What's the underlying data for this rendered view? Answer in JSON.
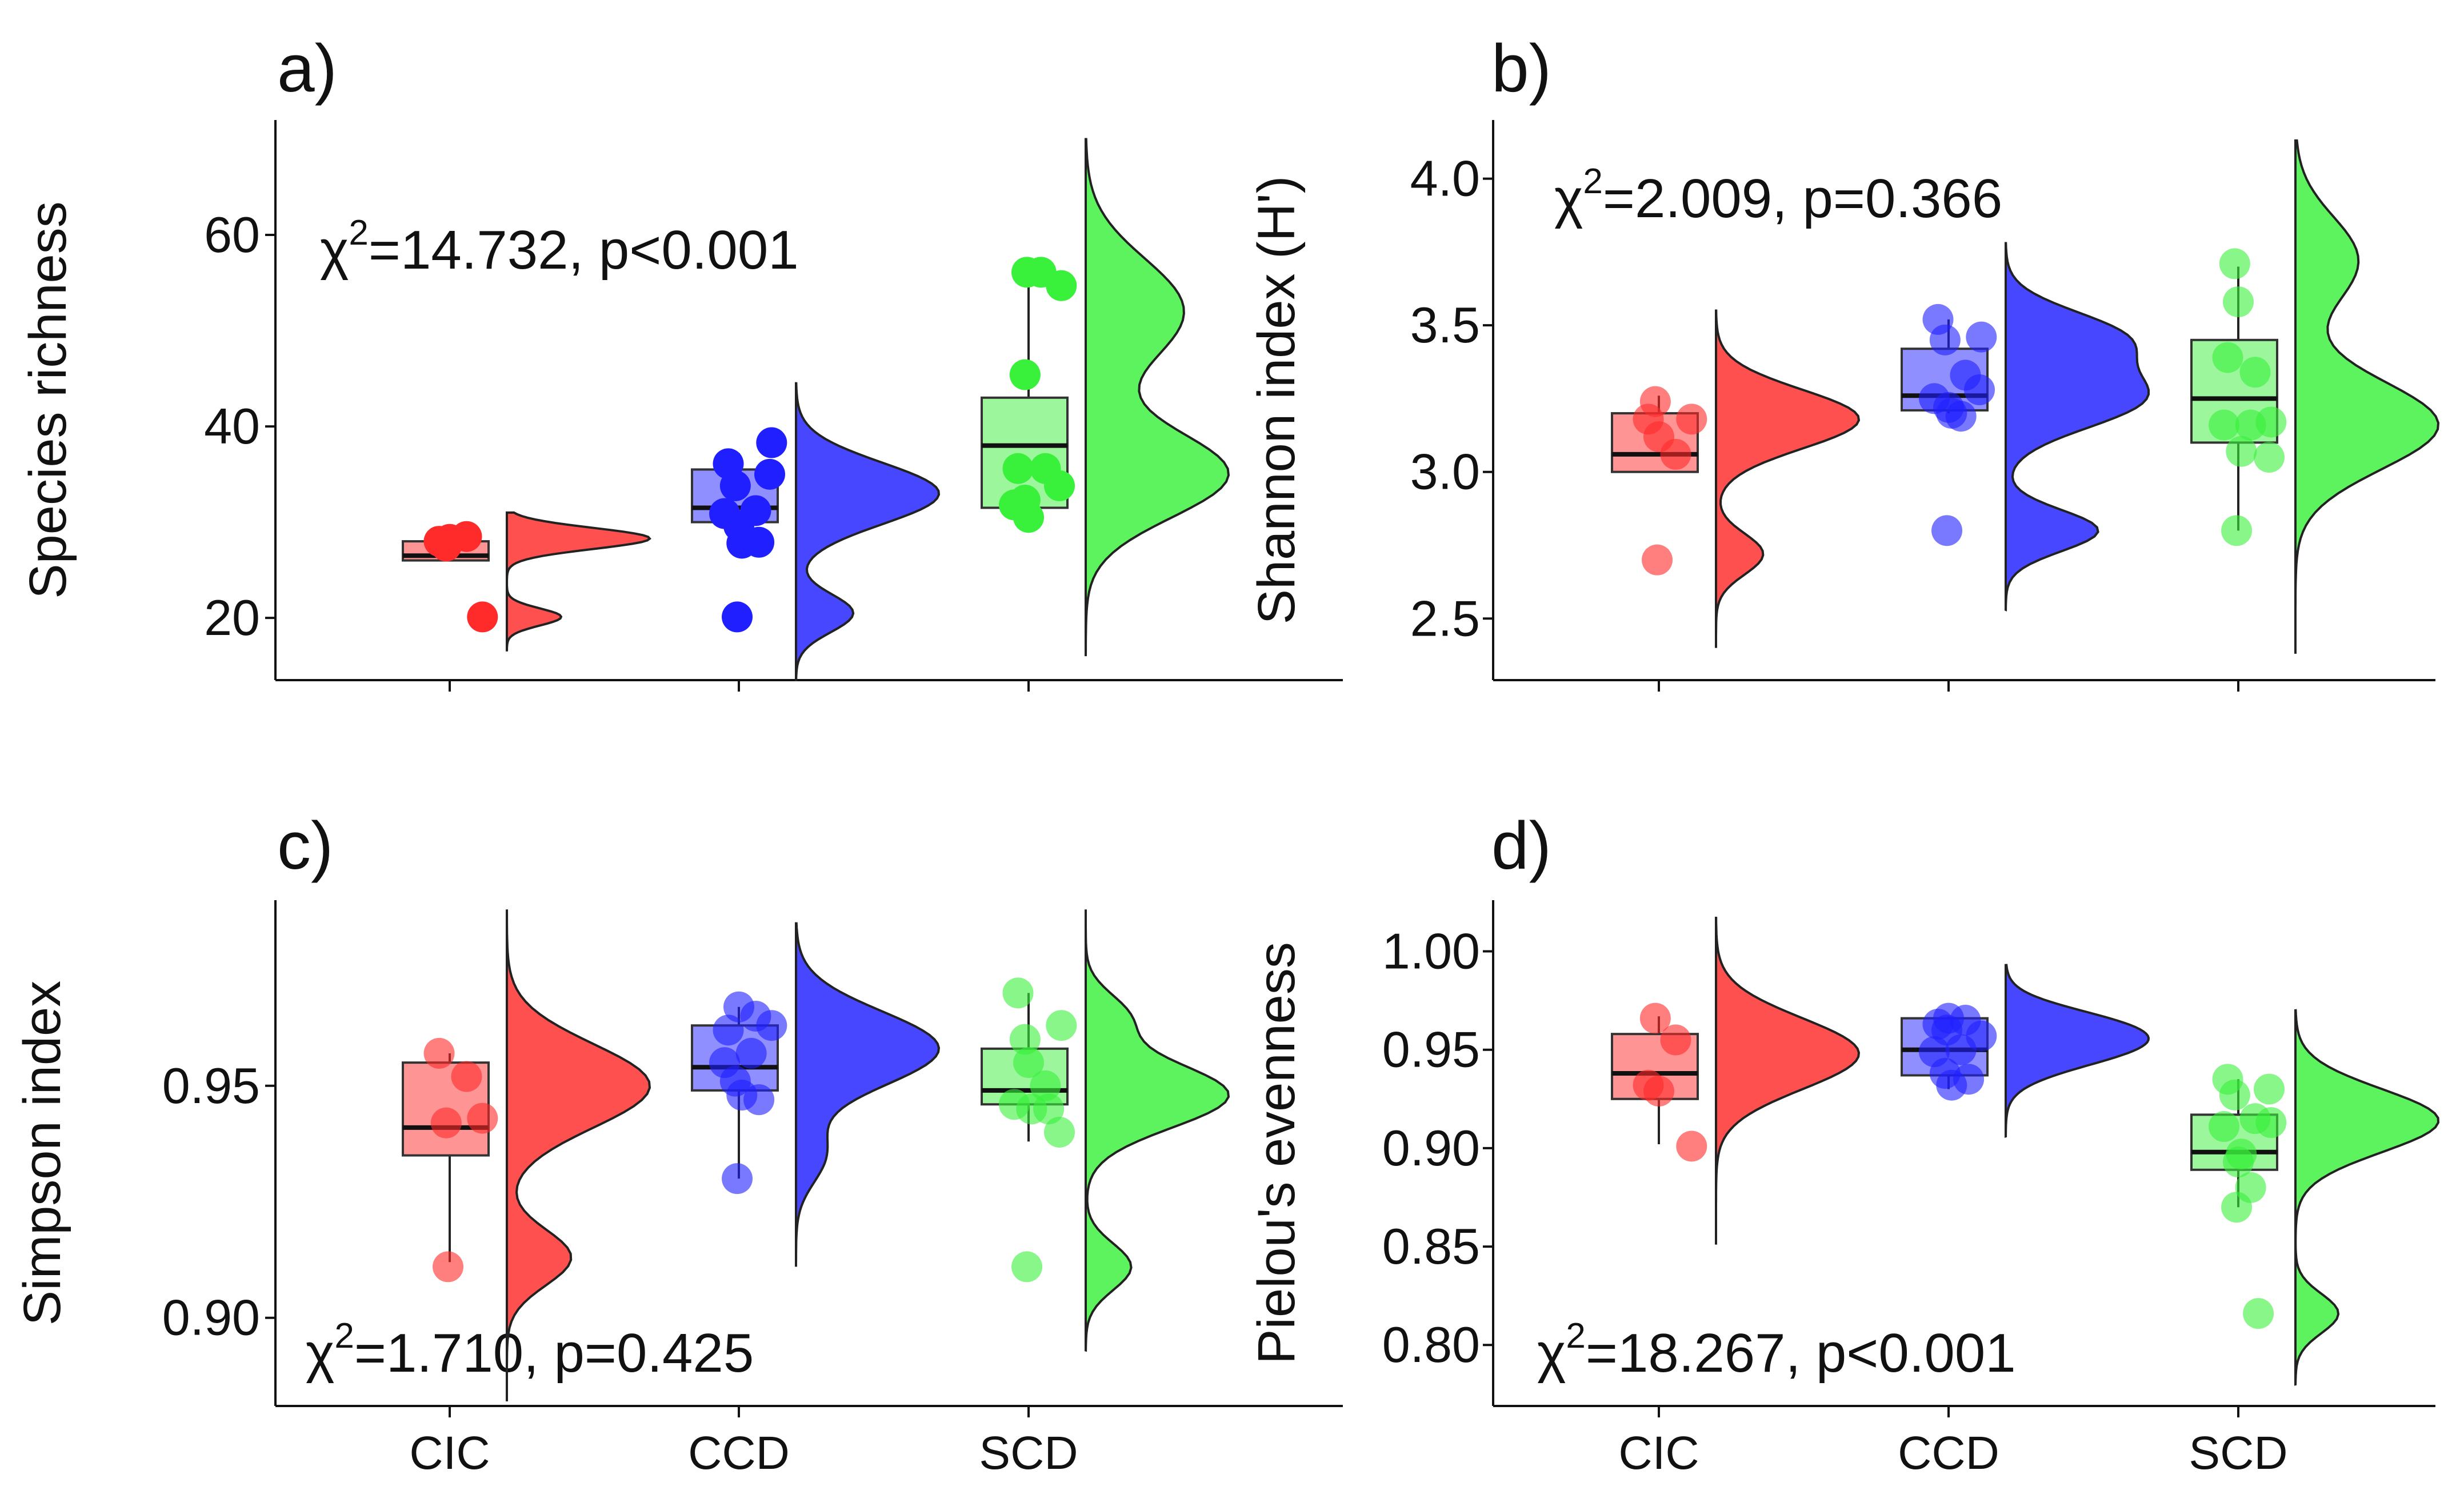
{
  "colors": {
    "CIC": "#ff2a2a",
    "CCD": "#1f1fff",
    "SCD": "#39f03a"
  },
  "chart_data": [
    {
      "type": "raincloud",
      "panel_label": "a)",
      "title": "",
      "xlabel": "",
      "ylabel": "Species richness",
      "categories": [
        "CIC",
        "CCD",
        "SCD"
      ],
      "show_x_tick_labels": false,
      "ylim": [
        13.5,
        72
      ],
      "yticks": [
        20,
        40,
        60
      ],
      "ytick_labels": [
        "20",
        "40",
        "60"
      ],
      "stat": {
        "prefix": "χ",
        "sup": "2",
        "text": "=14.732, p<0.001"
      },
      "point_opacity": 1.0,
      "groups": [
        {
          "name": "CIC",
          "points": [
            [
              26.8,
              28.5
            ],
            [
              -16.8,
              28.0
            ],
            [
              0,
              28.2
            ],
            [
              -5.6,
              27.5
            ],
            [
              52.1,
              20.1
            ]
          ],
          "box": {
            "q1": 26.0,
            "median": 26.5,
            "q3": 28.0,
            "whisker_low": 26.0,
            "whisker_high": 28.0
          },
          "density": {
            "y_min": 16.5,
            "y_max": 31.0,
            "peaks": [
              [
                28.3,
                1.0,
                1.1
              ],
              [
                20.1,
                0.38,
                0.9
              ]
            ]
          }
        },
        {
          "name": "CCD",
          "points": [
            [
              -16.8,
              36.1
            ],
            [
              -5.6,
              33.8
            ],
            [
              52.1,
              38.3
            ],
            [
              49.1,
              35.0
            ],
            [
              -22.7,
              30.9
            ],
            [
              26.8,
              31.2
            ],
            [
              0,
              29.6
            ],
            [
              4.8,
              27.8
            ],
            [
              31.9,
              27.9
            ],
            [
              -2.7,
              20.1
            ]
          ],
          "box": {
            "q1": 30.0,
            "median": 31.5,
            "q3": 35.5,
            "whisker_low": 27.5,
            "whisker_high": 37.2
          },
          "density": {
            "y_min": 13.5,
            "y_max": 44.5,
            "peaks": [
              [
                33.0,
                0.75,
                3.2
              ],
              [
                20.5,
                0.3,
                2.0
              ]
            ]
          }
        },
        {
          "name": "SCD",
          "points": [
            [
              19.7,
              56.1
            ],
            [
              -2.7,
              56.1
            ],
            [
              -5.6,
              45.4
            ],
            [
              52.1,
              54.7
            ],
            [
              -16.8,
              35.6
            ],
            [
              26.8,
              35.6
            ],
            [
              -22.7,
              31.8
            ],
            [
              -5.6,
              32.3
            ],
            [
              49.1,
              33.8
            ],
            [
              0,
              30.5
            ]
          ],
          "box": {
            "q1": 31.5,
            "median": 38.0,
            "q3": 43.0,
            "whisker_low": 30.5,
            "whisker_high": 56.5
          },
          "density": {
            "y_min": 16.0,
            "y_max": 70.0,
            "peaks": [
              [
                35.0,
                0.55,
                4.5
              ],
              [
                52.0,
                0.38,
                5.5
              ]
            ]
          }
        }
      ]
    },
    {
      "type": "raincloud",
      "panel_label": "b)",
      "title": "",
      "xlabel": "",
      "ylabel": "Shannon index (H')",
      "categories": [
        "CIC",
        "CCD",
        "SCD"
      ],
      "show_x_tick_labels": false,
      "ylim": [
        2.29,
        4.2
      ],
      "yticks": [
        2.5,
        3.0,
        3.5,
        4.0
      ],
      "ytick_labels": [
        "2.5",
        "3.0",
        "3.5",
        "4.0"
      ],
      "stat": {
        "prefix": "χ",
        "sup": "2",
        "text": "=2.009, p=0.366"
      },
      "point_opacity": 0.6,
      "groups": [
        {
          "name": "CIC",
          "points": [
            [
              -5.6,
              3.24
            ],
            [
              -16.8,
              3.18
            ],
            [
              0,
              3.12
            ],
            [
              52.1,
              3.18
            ],
            [
              26.8,
              3.06
            ],
            [
              -2.7,
              2.7
            ]
          ],
          "box": {
            "q1": 3.0,
            "median": 3.06,
            "q3": 3.2,
            "whisker_low": 3.0,
            "whisker_high": 3.26
          },
          "density": {
            "y_min": 2.4,
            "y_max": 3.55,
            "peaks": [
              [
                3.18,
                1.0,
                0.1
              ],
              [
                2.72,
                0.33,
                0.07
              ]
            ]
          }
        },
        {
          "name": "CCD",
          "points": [
            [
              -16.8,
              3.52
            ],
            [
              -5.6,
              3.45
            ],
            [
              52.1,
              3.46
            ],
            [
              49.1,
              3.28
            ],
            [
              26.8,
              3.33
            ],
            [
              -22.7,
              3.25
            ],
            [
              0,
              3.22
            ],
            [
              19.7,
              3.19
            ],
            [
              4.8,
              3.2
            ],
            [
              -2.7,
              2.8
            ]
          ],
          "box": {
            "q1": 3.21,
            "median": 3.26,
            "q3": 3.42,
            "whisker_low": 3.2,
            "whisker_high": 3.52
          },
          "density": {
            "y_min": 2.53,
            "y_max": 3.78,
            "peaks": [
              [
                3.25,
                0.55,
                0.1
              ],
              [
                3.46,
                0.45,
                0.09
              ],
              [
                2.8,
                0.38,
                0.07
              ]
            ]
          }
        },
        {
          "name": "SCD",
          "points": [
            [
              -5.6,
              3.71
            ],
            [
              0,
              3.58
            ],
            [
              -16.8,
              3.39
            ],
            [
              26.8,
              3.34
            ],
            [
              52.1,
              3.17
            ],
            [
              -22.7,
              3.16
            ],
            [
              19.7,
              3.16
            ],
            [
              4.8,
              3.07
            ],
            [
              49.1,
              3.05
            ],
            [
              -2.7,
              2.8
            ]
          ],
          "box": {
            "q1": 3.1,
            "median": 3.25,
            "q3": 3.45,
            "whisker_low": 2.8,
            "whisker_high": 3.7
          },
          "density": {
            "y_min": 2.38,
            "y_max": 4.13,
            "peaks": [
              [
                3.16,
                0.5,
                0.15
              ],
              [
                3.72,
                0.22,
                0.15
              ]
            ]
          }
        }
      ]
    },
    {
      "type": "raincloud",
      "panel_label": "c)",
      "title": "",
      "xlabel": "",
      "ylabel": "Simpson index",
      "categories": [
        "CIC",
        "CCD",
        "SCD"
      ],
      "show_x_tick_labels": true,
      "ylim": [
        0.881,
        0.99
      ],
      "yticks": [
        0.9,
        0.95
      ],
      "ytick_labels": [
        "0.90",
        "0.95"
      ],
      "stat": {
        "prefix": "χ",
        "sup": "2",
        "text": "=1.710, p=0.425"
      },
      "point_opacity": 0.6,
      "groups": [
        {
          "name": "CIC",
          "points": [
            [
              -16.8,
              0.957
            ],
            [
              26.8,
              0.952
            ],
            [
              -5.6,
              0.942
            ],
            [
              52.1,
              0.943
            ],
            [
              -2.7,
              0.911
            ]
          ],
          "box": {
            "q1": 0.935,
            "median": 0.941,
            "q3": 0.955,
            "whisker_low": 0.912,
            "whisker_high": 0.957
          },
          "density": {
            "y_min": 0.882,
            "y_max": 0.988,
            "peaks": [
              [
                0.95,
                1.0,
                0.009
              ],
              [
                0.913,
                0.45,
                0.006
              ]
            ]
          }
        },
        {
          "name": "CCD",
          "points": [
            [
              -16.8,
              0.962
            ],
            [
              0,
              0.967
            ],
            [
              26.8,
              0.965
            ],
            [
              52.1,
              0.963
            ],
            [
              -22.7,
              0.955
            ],
            [
              19.7,
              0.957
            ],
            [
              -5.6,
              0.951
            ],
            [
              4.8,
              0.948
            ],
            [
              31.9,
              0.947
            ],
            [
              -2.7,
              0.93
            ]
          ],
          "box": {
            "q1": 0.949,
            "median": 0.954,
            "q3": 0.963,
            "whisker_low": 0.93,
            "whisker_high": 0.967
          },
          "density": {
            "y_min": 0.911,
            "y_max": 0.985,
            "peaks": [
              [
                0.958,
                1.1,
                0.008
              ],
              [
                0.935,
                0.22,
                0.006
              ]
            ]
          }
        },
        {
          "name": "SCD",
          "points": [
            [
              -16.8,
              0.97
            ],
            [
              52.1,
              0.963
            ],
            [
              -5.6,
              0.96
            ],
            [
              0,
              0.955
            ],
            [
              26.8,
              0.95
            ],
            [
              -22.7,
              0.946
            ],
            [
              4.8,
              0.945
            ],
            [
              31.9,
              0.945
            ],
            [
              49.1,
              0.94
            ],
            [
              -2.7,
              0.911
            ]
          ],
          "box": {
            "q1": 0.946,
            "median": 0.949,
            "q3": 0.958,
            "whisker_low": 0.938,
            "whisker_high": 0.97
          },
          "density": {
            "y_min": 0.893,
            "y_max": 0.988,
            "peaks": [
              [
                0.948,
                1.1,
                0.007
              ],
              [
                0.965,
                0.3,
                0.005
              ],
              [
                0.911,
                0.35,
                0.005
              ]
            ]
          }
        }
      ]
    },
    {
      "type": "raincloud",
      "panel_label": "d)",
      "title": "",
      "xlabel": "",
      "ylabel": "Pielou's evenness",
      "categories": [
        "CIC",
        "CCD",
        "SCD"
      ],
      "show_x_tick_labels": true,
      "ylim": [
        0.769,
        1.026
      ],
      "yticks": [
        0.8,
        0.85,
        0.9,
        0.95,
        1.0
      ],
      "ytick_labels": [
        "0.80",
        "0.85",
        "0.90",
        "0.95",
        "1.00"
      ],
      "stat": {
        "prefix": "χ",
        "sup": "2",
        "text": "=18.267, p<0.001"
      },
      "point_opacity": 0.6,
      "groups": [
        {
          "name": "CIC",
          "points": [
            [
              -5.6,
              0.966
            ],
            [
              26.8,
              0.955
            ],
            [
              -16.8,
              0.932
            ],
            [
              0,
              0.929
            ],
            [
              52.1,
              0.901
            ]
          ],
          "box": {
            "q1": 0.925,
            "median": 0.938,
            "q3": 0.958,
            "whisker_low": 0.902,
            "whisker_high": 0.967
          },
          "density": {
            "y_min": 0.851,
            "y_max": 1.017,
            "peaks": [
              [
                0.948,
                1.0,
                0.018
              ]
            ]
          }
        },
        {
          "name": "CCD",
          "points": [
            [
              -16.8,
              0.963
            ],
            [
              0,
              0.966
            ],
            [
              26.8,
              0.965
            ],
            [
              52.1,
              0.957
            ],
            [
              -22.7,
              0.949
            ],
            [
              19.7,
              0.95
            ],
            [
              -5.6,
              0.938
            ],
            [
              4.8,
              0.932
            ],
            [
              31.9,
              0.935
            ],
            [
              -2.7,
              0.96
            ]
          ],
          "box": {
            "q1": 0.937,
            "median": 0.95,
            "q3": 0.966,
            "whisker_low": 0.93,
            "whisker_high": 0.967
          },
          "density": {
            "y_min": 0.906,
            "y_max": 0.993,
            "peaks": [
              [
                0.954,
                1.2,
                0.012
              ],
              [
                0.966,
                0.2,
                0.008
              ]
            ]
          }
        },
        {
          "name": "SCD",
          "points": [
            [
              -16.8,
              0.935
            ],
            [
              -5.6,
              0.927
            ],
            [
              49.1,
              0.93
            ],
            [
              26.8,
              0.915
            ],
            [
              -22.7,
              0.911
            ],
            [
              52.1,
              0.913
            ],
            [
              4.8,
              0.897
            ],
            [
              0,
              0.893
            ],
            [
              19.7,
              0.88
            ],
            [
              -2.7,
              0.87
            ],
            [
              31.9,
              0.816
            ]
          ],
          "box": {
            "q1": 0.889,
            "median": 0.898,
            "q3": 0.917,
            "whisker_low": 0.87,
            "whisker_high": 0.935
          },
          "density": {
            "y_min": 0.78,
            "y_max": 0.97,
            "peaks": [
              [
                0.914,
                1.0,
                0.016
              ],
              [
                0.816,
                0.3,
                0.01
              ]
            ]
          }
        }
      ]
    }
  ]
}
